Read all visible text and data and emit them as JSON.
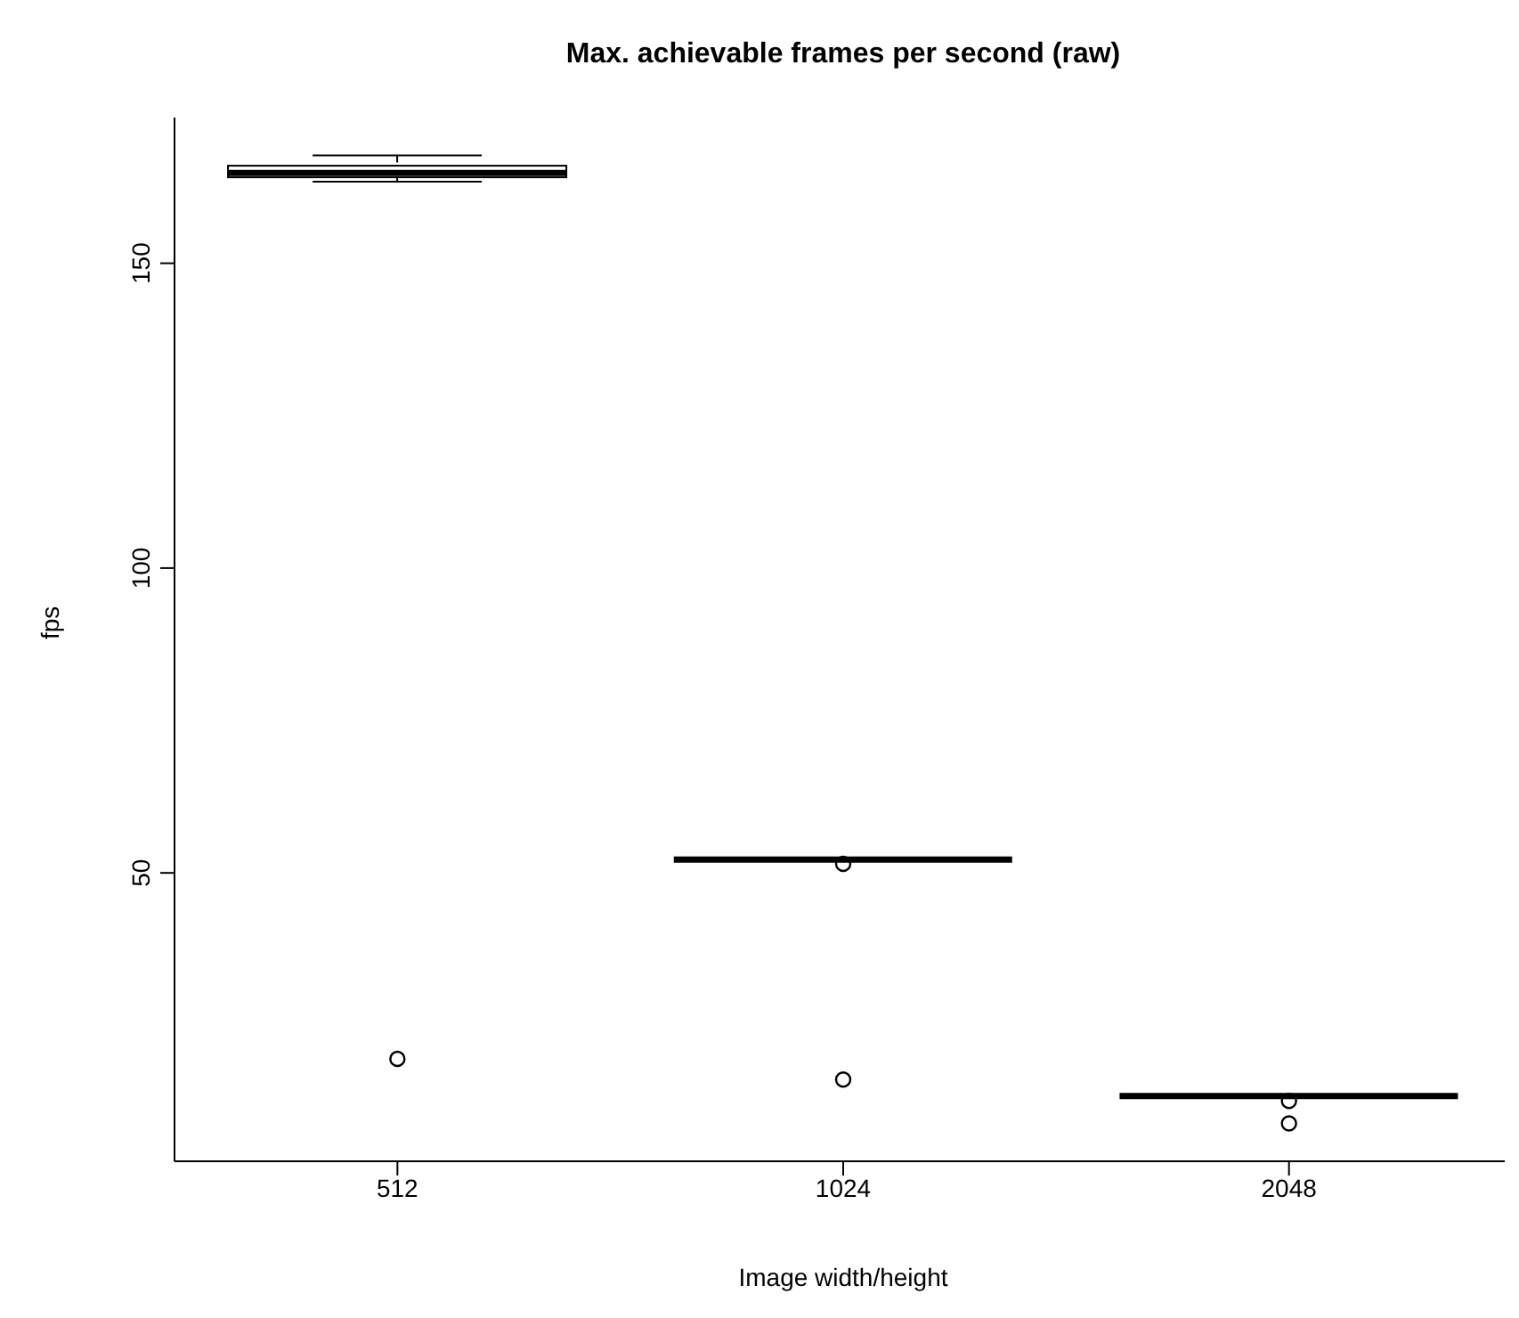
{
  "chart_data": {
    "type": "box",
    "title": "Max. achievable frames per second (raw)",
    "xlabel": "Image width/height",
    "ylabel": "fps",
    "categories": [
      "512",
      "1024",
      "2048"
    ],
    "boxes": [
      {
        "low": 163.4,
        "q1": 164.1,
        "median": 164.8,
        "q3": 166.0,
        "high": 167.7,
        "outliers": [
          19.5
        ]
      },
      {
        "low": 52.2,
        "q1": 52.2,
        "median": 52.2,
        "q3": 52.2,
        "high": 52.2,
        "outliers": [
          51.5,
          16.1
        ]
      },
      {
        "low": 13.4,
        "q1": 13.4,
        "median": 13.4,
        "q3": 13.4,
        "high": 13.4,
        "outliers": [
          12.6,
          8.9
        ]
      }
    ],
    "ylim": [
      2.7,
      173.9
    ],
    "yticks": [
      50,
      100,
      150
    ],
    "grid": false,
    "legend": false
  }
}
